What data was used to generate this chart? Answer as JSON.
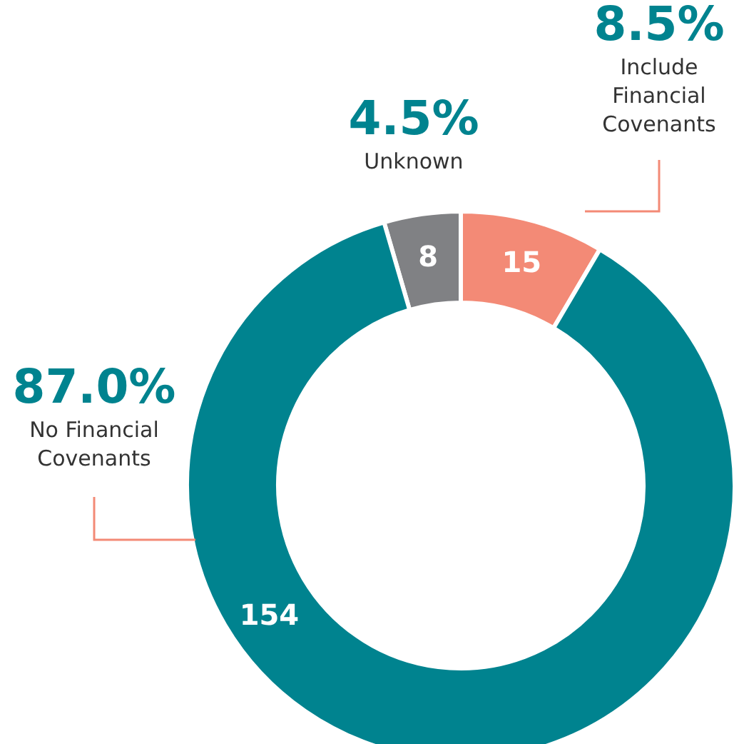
{
  "chart_data": {
    "type": "donut",
    "categories": [
      "Unknown",
      "Include Financial Covenants",
      "No Financial Covenants"
    ],
    "values": [
      8,
      15,
      154
    ],
    "colors": [
      "#808184",
      "#f38a76",
      "#00838f"
    ],
    "data_labels": true,
    "annotations": [
      "4.5%",
      "8.5%",
      "87.0%"
    ]
  }
}
